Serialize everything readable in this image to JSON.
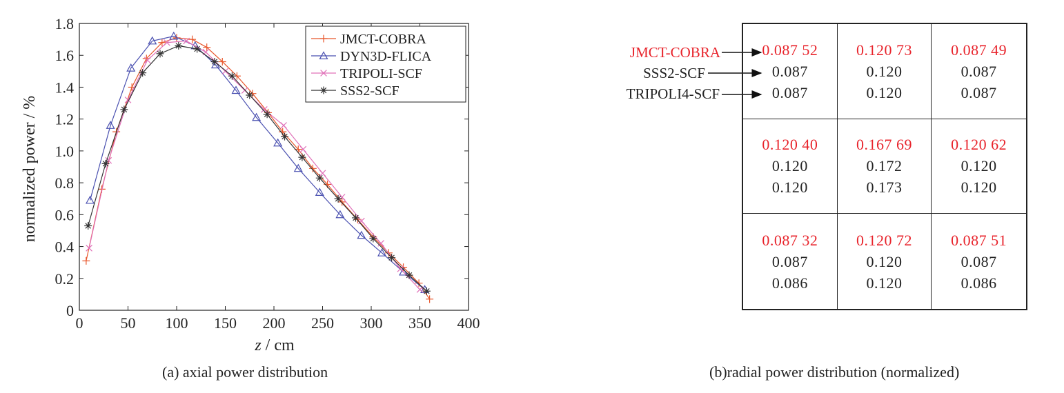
{
  "chart_data": [
    {
      "type": "line",
      "xlabel_var": "z",
      "xlabel_unit": " / cm",
      "ylabel": "normalized power / %",
      "xlim": [
        0,
        400
      ],
      "ylim": [
        0,
        1.8
      ],
      "xticks": [
        "0",
        "50",
        "100",
        "150",
        "200",
        "250",
        "300",
        "350",
        "400"
      ],
      "yticks": [
        "0",
        "0.2",
        "0.4",
        "0.6",
        "0.8",
        "1.0",
        "1.2",
        "1.4",
        "1.6",
        "1.8"
      ],
      "legend_position": "top-right",
      "grid": false,
      "series": [
        {
          "name": "JMCT-COBRA",
          "color": "#e8562b",
          "marker": "plus",
          "x": [
            7,
            23,
            38,
            54,
            69,
            85,
            100,
            116,
            131,
            147,
            162,
            178,
            194,
            209,
            225,
            240,
            255,
            270,
            286,
            302,
            318,
            333,
            349,
            360
          ],
          "y": [
            0.31,
            0.76,
            1.12,
            1.4,
            1.58,
            1.68,
            1.71,
            1.7,
            1.65,
            1.56,
            1.47,
            1.36,
            1.24,
            1.12,
            1.01,
            0.89,
            0.79,
            0.68,
            0.57,
            0.46,
            0.36,
            0.27,
            0.17,
            0.07
          ]
        },
        {
          "name": "DYN3D-FLICA",
          "color": "#4a50b0",
          "marker": "triangle",
          "x": [
            11,
            32,
            53,
            75,
            97,
            119,
            140,
            161,
            182,
            204,
            225,
            247,
            268,
            290,
            311,
            333,
            355
          ],
          "y": [
            0.69,
            1.16,
            1.52,
            1.69,
            1.72,
            1.66,
            1.54,
            1.38,
            1.21,
            1.05,
            0.89,
            0.74,
            0.6,
            0.47,
            0.36,
            0.24,
            0.13
          ]
        },
        {
          "name": "TRIPOLI-SCF",
          "color": "#e070b8",
          "marker": "x",
          "x": [
            10,
            30,
            50,
            70,
            90,
            110,
            130,
            150,
            170,
            190,
            210,
            230,
            250,
            270,
            290,
            310,
            330,
            350
          ],
          "y": [
            0.39,
            0.94,
            1.32,
            1.57,
            1.68,
            1.69,
            1.62,
            1.5,
            1.38,
            1.26,
            1.16,
            1.01,
            0.86,
            0.71,
            0.56,
            0.42,
            0.26,
            0.13
          ]
        },
        {
          "name": "SSS2-SCF",
          "color": "#333333",
          "marker": "star",
          "x": [
            9,
            27,
            46,
            65,
            83,
            102,
            121,
            139,
            157,
            175,
            193,
            211,
            229,
            247,
            266,
            284,
            302,
            321,
            339,
            357
          ],
          "y": [
            0.53,
            0.92,
            1.26,
            1.49,
            1.61,
            1.66,
            1.64,
            1.56,
            1.47,
            1.35,
            1.23,
            1.09,
            0.96,
            0.83,
            0.7,
            0.58,
            0.45,
            0.33,
            0.22,
            0.12
          ]
        }
      ]
    },
    {
      "type": "table",
      "row_labels": [
        "JMCT-COBRA",
        "SSS2-SCF",
        "TRIPOLI4-SCF"
      ],
      "label_colors": [
        "#e8232b",
        "#222222",
        "#222222"
      ],
      "cells": [
        [
          "0.087 52",
          "0.087",
          "0.087"
        ],
        [
          "0.120 73",
          "0.120",
          "0.120"
        ],
        [
          "0.087 49",
          "0.087",
          "0.087"
        ],
        [
          "0.120 40",
          "0.120",
          "0.120"
        ],
        [
          "0.167 69",
          "0.172",
          "0.173"
        ],
        [
          "0.120 62",
          "0.120",
          "0.120"
        ],
        [
          "0.087 32",
          "0.087",
          "0.086"
        ],
        [
          "0.120 72",
          "0.120",
          "0.120"
        ],
        [
          "0.087 51",
          "0.087",
          "0.086"
        ]
      ]
    }
  ],
  "captions": {
    "a": "(a) axial power distribution",
    "b": "(b)radial power distribution (normalized)"
  }
}
